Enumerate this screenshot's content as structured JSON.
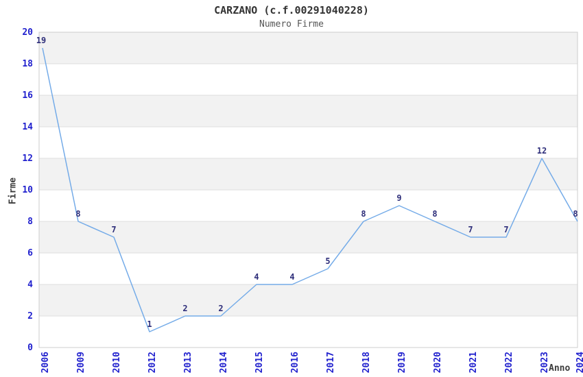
{
  "title": "CARZANO (c.f.00291040228)",
  "subtitle": "Numero Firme",
  "chart_data": {
    "type": "line",
    "title": "CARZANO (c.f.00291040228)",
    "subtitle": "Numero Firme",
    "xlabel": "Anno",
    "ylabel": "Firme",
    "categories": [
      "2006",
      "2009",
      "2010",
      "2012",
      "2013",
      "2014",
      "2015",
      "2016",
      "2017",
      "2018",
      "2019",
      "2020",
      "2021",
      "2022",
      "2023",
      "2024"
    ],
    "values": [
      19,
      8,
      7,
      1,
      2,
      2,
      4,
      4,
      5,
      8,
      9,
      8,
      7,
      7,
      12,
      8
    ],
    "ylim": [
      0,
      20
    ],
    "ytick_step": 2,
    "grid": true,
    "alternating_bands": true,
    "legend": "none",
    "colors": {
      "line": "#74ABE8",
      "tick_label": "#2121CE",
      "data_label": "#2E2E7A",
      "band_gray": "#F2F2F2",
      "band_white": "#FFFFFF",
      "gridline": "#DEDEDE",
      "plot_border": "#CCCCCC",
      "title": "#333333",
      "subtitle": "#555555",
      "axis_title": "#3C3C3C"
    }
  }
}
